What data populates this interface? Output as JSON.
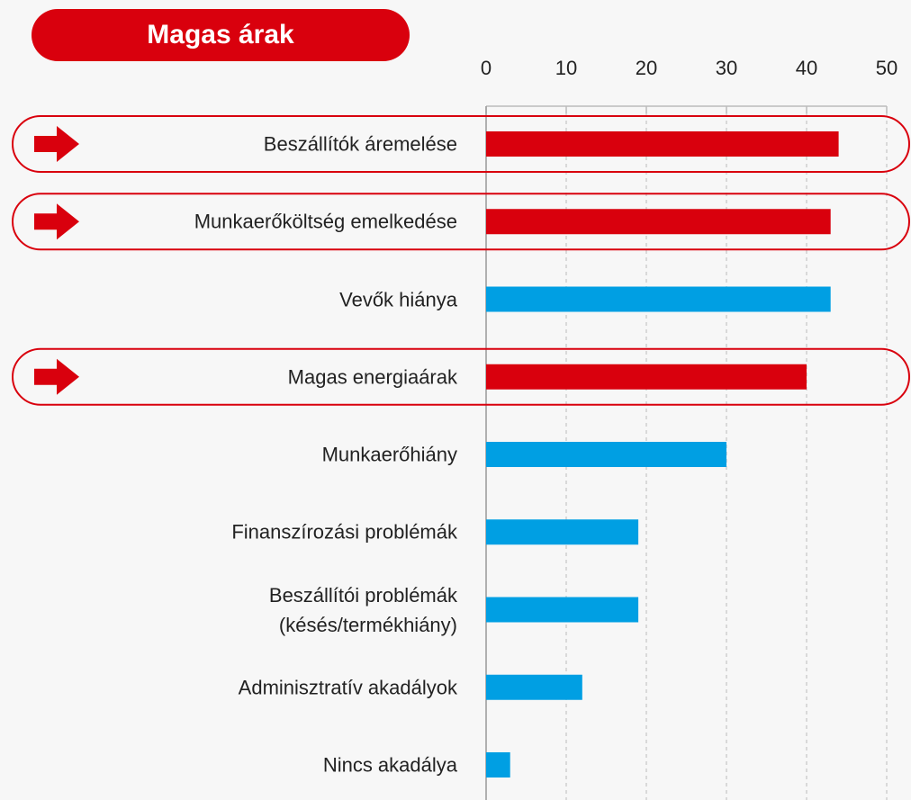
{
  "chart_data": {
    "type": "bar",
    "orientation": "horizontal",
    "title": "Magas árak",
    "categories": [
      "Beszállítók áremelése",
      "Munkaerőköltség emelkedése",
      "Vevők hiánya",
      "Magas energiaárak",
      "Munkaerőhiány",
      "Finanszírozási problémák",
      "Beszállítói problémák\n(késés/termékhiány)",
      "Adminisztratív akadályok",
      "Nincs akadálya"
    ],
    "values": [
      44,
      43,
      43,
      40,
      30,
      19,
      19,
      12,
      3
    ],
    "colors": [
      "#d9000d",
      "#d9000d",
      "#009fe3",
      "#d9000d",
      "#009fe3",
      "#009fe3",
      "#009fe3",
      "#009fe3",
      "#009fe3"
    ],
    "highlight_color": "#d9000d",
    "xlim": [
      0,
      50
    ],
    "xticks": [
      0,
      10,
      20,
      30,
      40,
      50
    ],
    "grid": true
  }
}
